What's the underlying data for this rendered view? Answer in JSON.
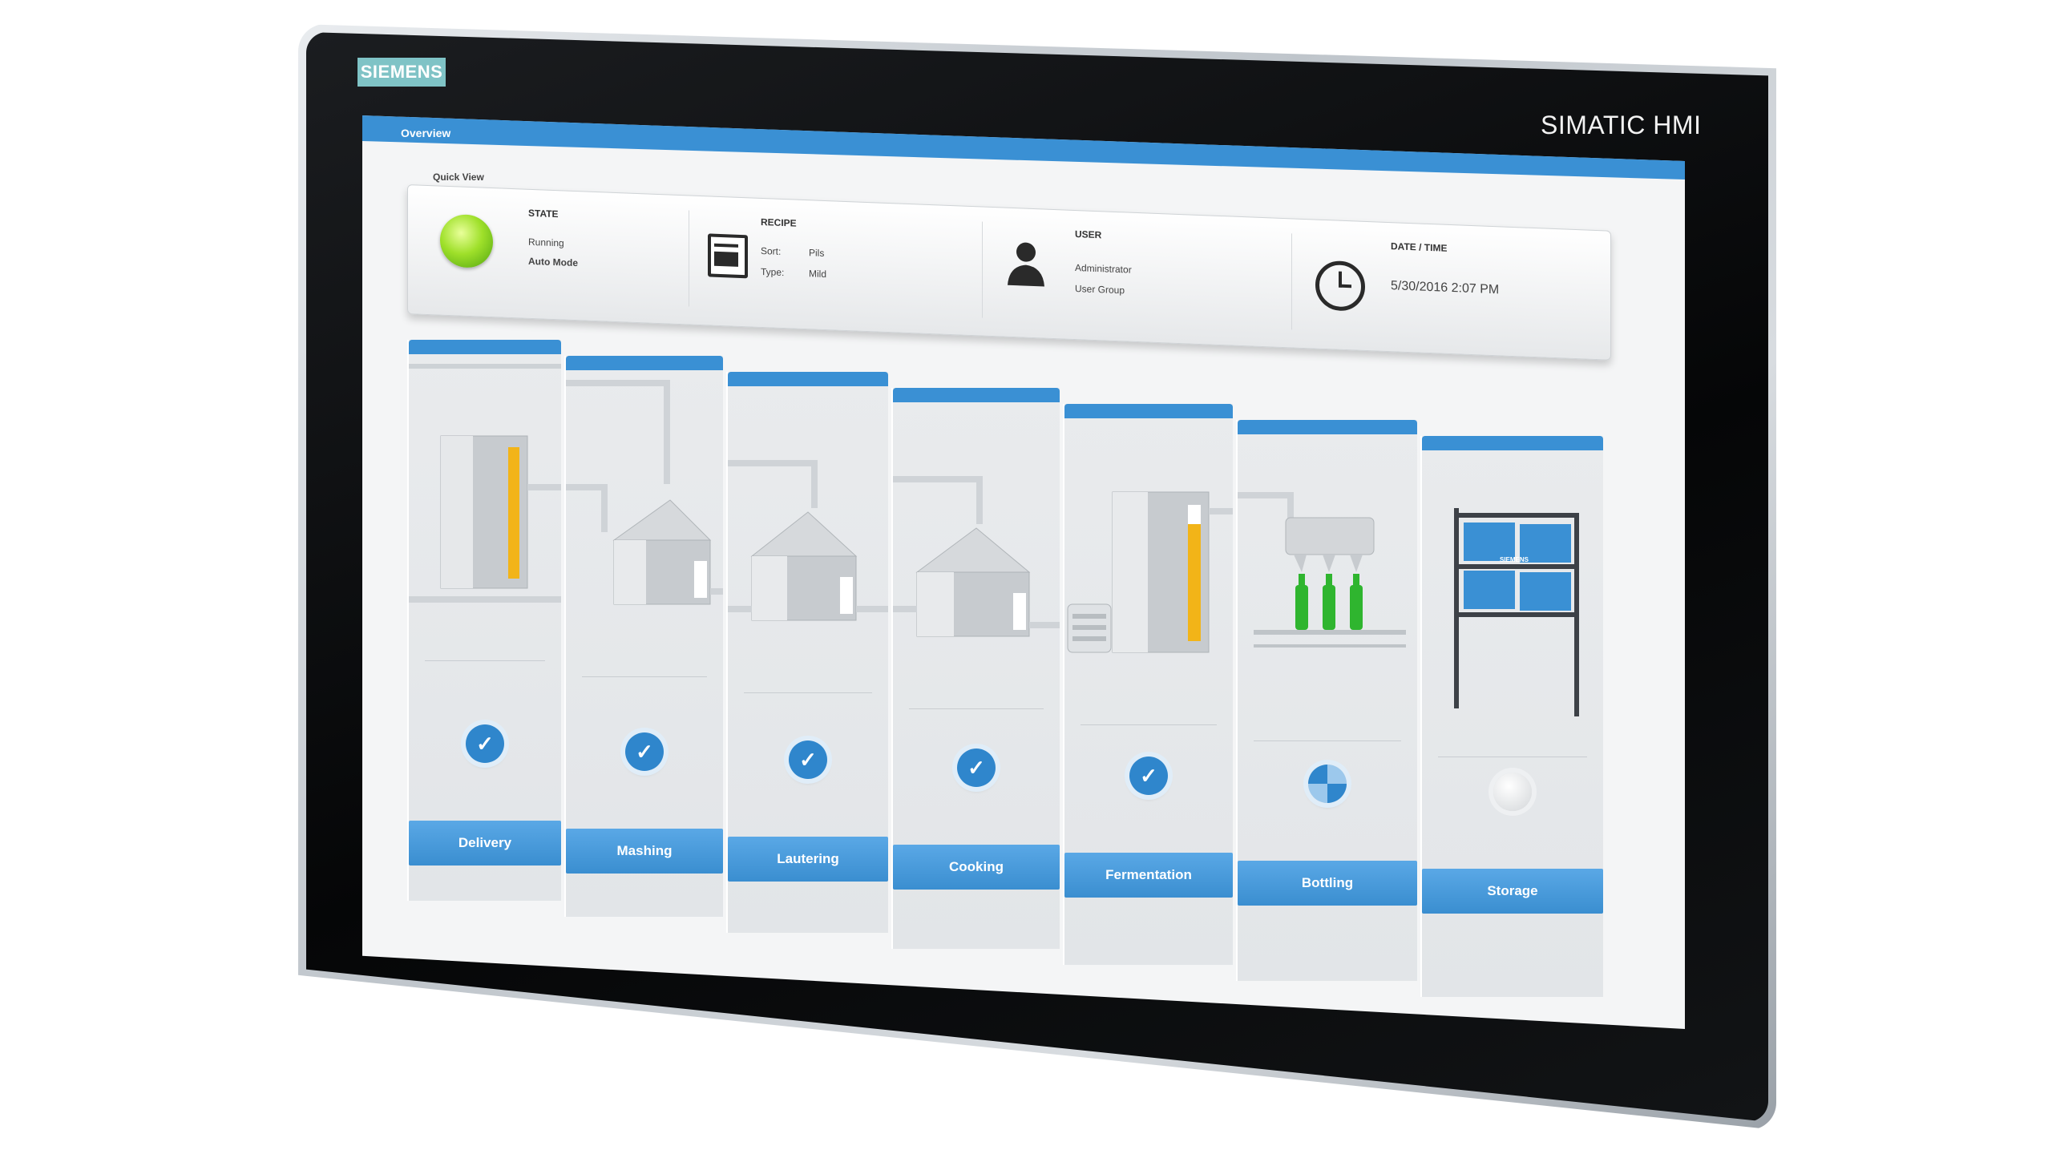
{
  "device": {
    "brand": "SIEMENS",
    "model": "SIMATIC HMI"
  },
  "header": {
    "title": "Overview"
  },
  "quick_view": {
    "label": "Quick View",
    "state": {
      "title": "STATE",
      "status": "Running",
      "mode": "Auto Mode",
      "indicator_color": "#8ad61e"
    },
    "recipe": {
      "title": "RECIPE",
      "sort_label": "Sort:",
      "sort_value": "Pils",
      "type_label": "Type:",
      "type_value": "Mild",
      "icon": "recipe-icon"
    },
    "user": {
      "title": "USER",
      "name": "Administrator",
      "group": "User Group",
      "icon": "user-icon"
    },
    "datetime": {
      "title": "DATE / TIME",
      "value": "5/30/2016 2:07 PM",
      "icon": "clock-icon"
    }
  },
  "stations": [
    {
      "label": "Delivery",
      "status": "done"
    },
    {
      "label": "Mashing",
      "status": "done"
    },
    {
      "label": "Lautering",
      "status": "done"
    },
    {
      "label": "Cooking",
      "status": "done"
    },
    {
      "label": "Fermentation",
      "status": "done"
    },
    {
      "label": "Bottling",
      "status": "in-progress"
    },
    {
      "label": "Storage",
      "status": "idle"
    }
  ],
  "storage": {
    "crate_label": "SIEMENS"
  },
  "colors": {
    "accent": "#3a90d4",
    "level_fill": "#f2b418",
    "bottle": "#2fb52f"
  }
}
